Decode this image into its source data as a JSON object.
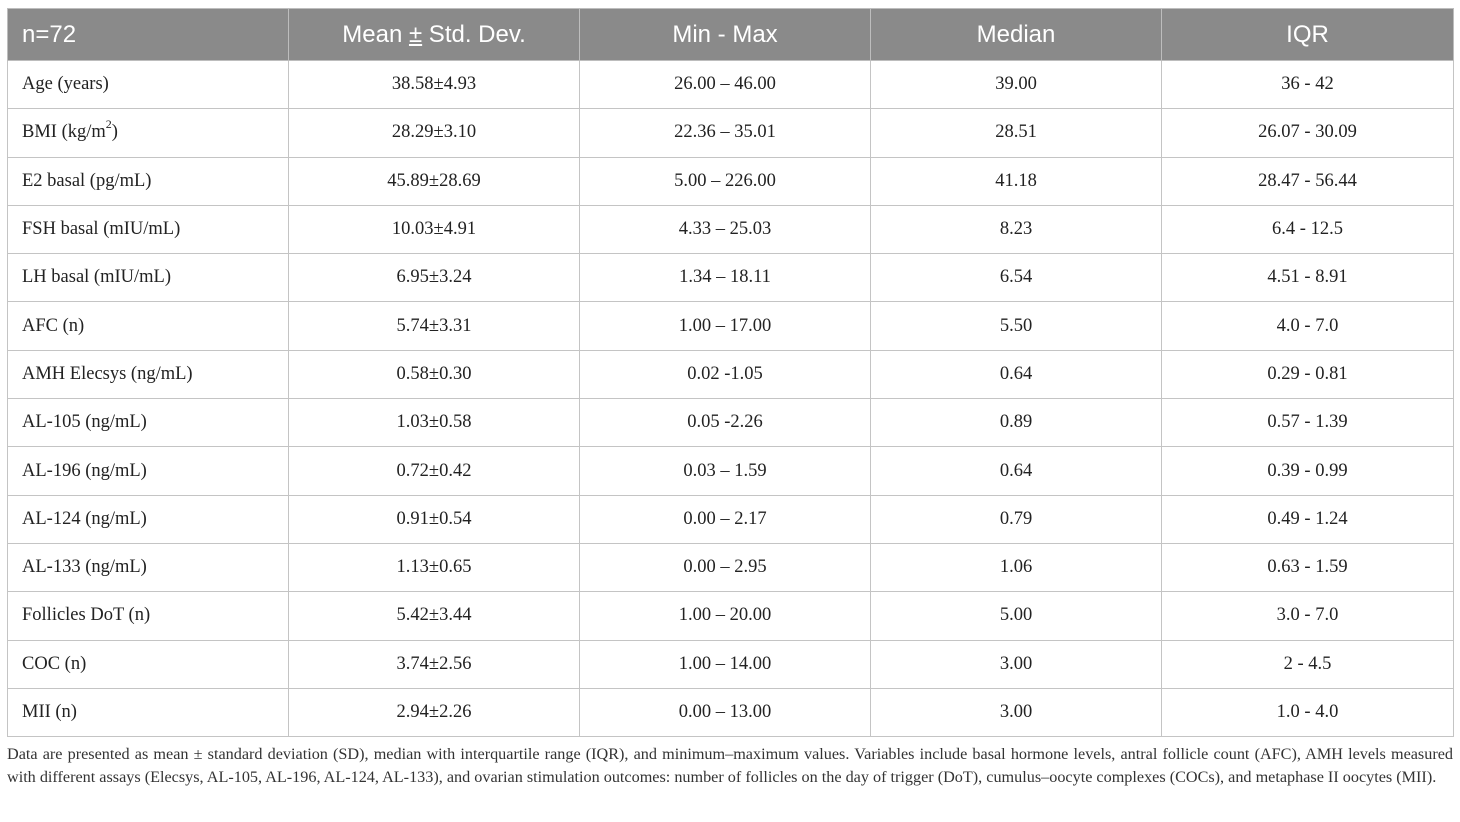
{
  "table": {
    "headers": {
      "col0": "n=72",
      "col1_prefix": "Mean ",
      "col1_pm": "±",
      "col1_suffix": " Std. Dev.",
      "col2": "Min - Max",
      "col3": "Median",
      "col4": "IQR"
    },
    "rows": [
      {
        "label": "Age (years)",
        "mean_sd": "38.58±4.93",
        "min_max": "26.00 – 46.00",
        "median": "39.00",
        "iqr": "36 - 42"
      },
      {
        "label": "BMI (kg/m",
        "label_sup": "2",
        "label_suffix": ")",
        "mean_sd": "28.29±3.10",
        "min_max": "22.36 – 35.01",
        "median": "28.51",
        "iqr": "26.07 - 30.09"
      },
      {
        "label": "E2 basal (pg/mL)",
        "mean_sd": "45.89±28.69",
        "min_max": "5.00 – 226.00",
        "median": "41.18",
        "iqr": "28.47 - 56.44"
      },
      {
        "label": "FSH basal (mIU/mL)",
        "mean_sd": "10.03±4.91",
        "min_max": "4.33 – 25.03",
        "median": "8.23",
        "iqr": "6.4 - 12.5"
      },
      {
        "label": "LH basal (mIU/mL)",
        "mean_sd": "6.95±3.24",
        "min_max": "1.34 – 18.11",
        "median": "6.54",
        "iqr": "4.51 - 8.91"
      },
      {
        "label": "AFC (n)",
        "mean_sd": "5.74±3.31",
        "min_max": "1.00 – 17.00",
        "median": "5.50",
        "iqr": "4.0 - 7.0"
      },
      {
        "label": "AMH Elecsys (ng/mL)",
        "mean_sd": "0.58±0.30",
        "min_max": "0.02 -1.05",
        "median": "0.64",
        "iqr": "0.29 - 0.81"
      },
      {
        "label": "AL-105 (ng/mL)",
        "mean_sd": "1.03±0.58",
        "min_max": "0.05 -2.26",
        "median": "0.89",
        "iqr": "0.57 - 1.39"
      },
      {
        "label": "AL-196 (ng/mL)",
        "mean_sd": "0.72±0.42",
        "min_max": "0.03 – 1.59",
        "median": "0.64",
        "iqr": "0.39 - 0.99"
      },
      {
        "label": "AL-124 (ng/mL)",
        "mean_sd": "0.91±0.54",
        "min_max": "0.00 – 2.17",
        "median": "0.79",
        "iqr": "0.49 - 1.24"
      },
      {
        "label": "AL-133 (ng/mL)",
        "mean_sd": "1.13±0.65",
        "min_max": "0.00 – 2.95",
        "median": "1.06",
        "iqr": "0.63 - 1.59"
      },
      {
        "label": "Follicles DoT (n)",
        "mean_sd": "5.42±3.44",
        "min_max": "1.00 – 20.00",
        "median": "5.00",
        "iqr": "3.0 - 7.0"
      },
      {
        "label": "COC (n)",
        "mean_sd": "3.74±2.56",
        "min_max": "1.00 – 14.00",
        "median": "3.00",
        "iqr": "2 - 4.5"
      },
      {
        "label": "MII (n)",
        "mean_sd": "2.94±2.26",
        "min_max": "0.00 – 13.00",
        "median": "3.00",
        "iqr": "1.0 - 4.0"
      }
    ]
  },
  "caption": "Data are presented as mean ± standard deviation (SD), median with interquartile range (IQR), and minimum–maximum values. Variables include basal hormone levels, antral follicle count (AFC), AMH levels measured with different assays (Elecsys, AL-105, AL-196, AL-124, AL-133), and ovarian stimulation outcomes: number of follicles on the day of trigger (DoT), cumulus–oocyte complexes (COCs), and metaphase II oocytes (MII).",
  "colors": {
    "header_bg": "#8a8a8a",
    "header_text": "#ffffff",
    "border": "#c4c4c4"
  }
}
